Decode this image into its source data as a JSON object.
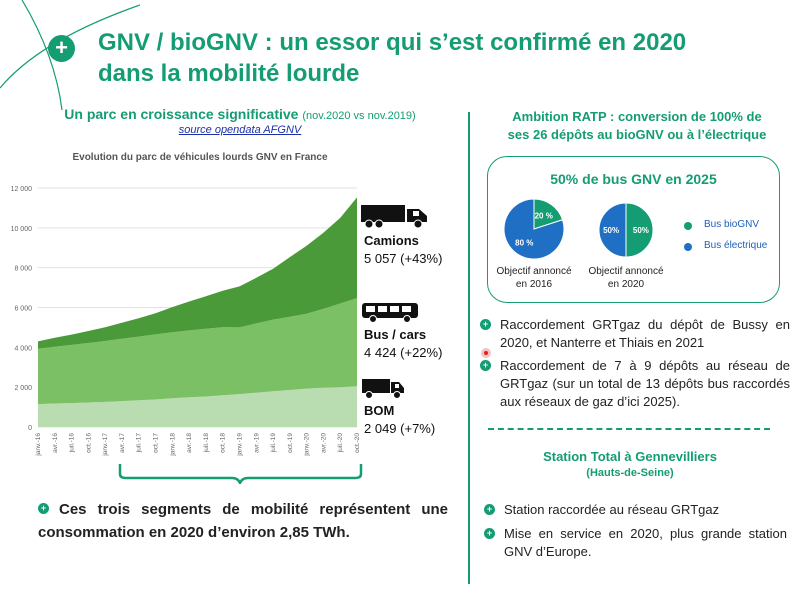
{
  "header": {
    "badge": "+",
    "title_line1": "GNV / bioGNV : un essor qui s’est confirmé en 2020",
    "title_line2": "dans la mobilité lourde"
  },
  "left": {
    "subtitle": "Un parc en croissance significative",
    "subtitle_note": "(nov.2020 vs nov.2019)",
    "source": "source opendata AFGNV",
    "bullet": "Ces trois segments de mobilité représentent une consommation en 2020 d’environ 2,85 TWh."
  },
  "segments": [
    {
      "name": "Camions",
      "value": "5 057 (+43%)",
      "icon": "truck-icon"
    },
    {
      "name": "Bus / cars",
      "value": "4 424 (+22%)",
      "icon": "bus-icon"
    },
    {
      "name": "BOM",
      "value": "2 049 (+7%)",
      "icon": "garbage-truck-icon"
    }
  ],
  "right": {
    "heading_line1": "Ambition RATP : conversion de 100% de",
    "heading_line2": "ses 26 dépôts au bioGNV ou à l’électrique",
    "goal_title": "50% de bus GNV en 2025",
    "pies": [
      {
        "green_label": "20 %",
        "blue_label": "80 %",
        "green_pct": 20,
        "caption_line1": "Objectif annoncé",
        "caption_line2": "en 2016"
      },
      {
        "green_label": "50%",
        "blue_label": "50%",
        "green_pct": 50,
        "caption_line1": "Objectif annoncé",
        "caption_line2": "en 2020"
      }
    ],
    "legend": [
      {
        "label": "Bus bioGNV",
        "color": "#149c73"
      },
      {
        "label": "Bus électrique",
        "color": "#1f6fc4"
      }
    ],
    "ratp_bullets": [
      "Raccordement GRTgaz du dépôt de Bussy en 2020, et Nanterre et Thiais en 2021",
      "Raccordement de 7 à 9 dépôts au réseau de GRTgaz (sur un total de 13 dépôts bus raccordés aux réseaux de gaz d’ici 2025)."
    ],
    "station_title": "Station Total à Gennevilliers",
    "station_sub": "(Hauts-de-Seine)",
    "station_bullets": [
      "Station raccordée au réseau GRTgaz",
      "Mise en service en 2020, plus grande station GNV d’Europe."
    ]
  },
  "colors": {
    "brand_green": "#149c73",
    "blue": "#1f6fc4",
    "area_dark": "#4a9a3a",
    "area_mid": "#7cc066",
    "area_light": "#b9ddb0"
  },
  "chart_data": {
    "type": "area",
    "title": "Evolution du parc de véhicules lourds GNV en France",
    "stacked": true,
    "x": [
      "janv.-16",
      "avr.-16",
      "juil.-16",
      "oct.-16",
      "janv.-17",
      "avr.-17",
      "juil.-17",
      "oct.-17",
      "janv.-18",
      "avr.-18",
      "juil.-18",
      "oct.-18",
      "janv.-19",
      "avr.-19",
      "juil.-19",
      "oct.-19",
      "janv.-20",
      "avr.-20",
      "juil.-20",
      "oct.-20"
    ],
    "series": [
      {
        "name": "BOM",
        "values": [
          1150,
          1180,
          1200,
          1230,
          1260,
          1300,
          1340,
          1380,
          1440,
          1490,
          1530,
          1590,
          1650,
          1720,
          1790,
          1860,
          1930,
          1970,
          2000,
          2049
        ]
      },
      {
        "name": "Bus / cars",
        "values": [
          2780,
          2850,
          2920,
          2990,
          3060,
          3130,
          3200,
          3270,
          3320,
          3360,
          3400,
          3420,
          3350,
          3480,
          3600,
          3680,
          3760,
          3960,
          4200,
          4424
        ]
      },
      {
        "name": "Camions",
        "values": [
          370,
          450,
          520,
          600,
          690,
          800,
          920,
          1060,
          1260,
          1450,
          1630,
          1830,
          2060,
          2290,
          2560,
          2990,
          3410,
          3820,
          4300,
          5057
        ]
      }
    ],
    "ylim": [
      0,
      12000
    ],
    "yticks": [
      "0",
      "2 000",
      "4 000",
      "6 000",
      "8 000",
      "10 000",
      "12 000"
    ],
    "grid": true
  }
}
